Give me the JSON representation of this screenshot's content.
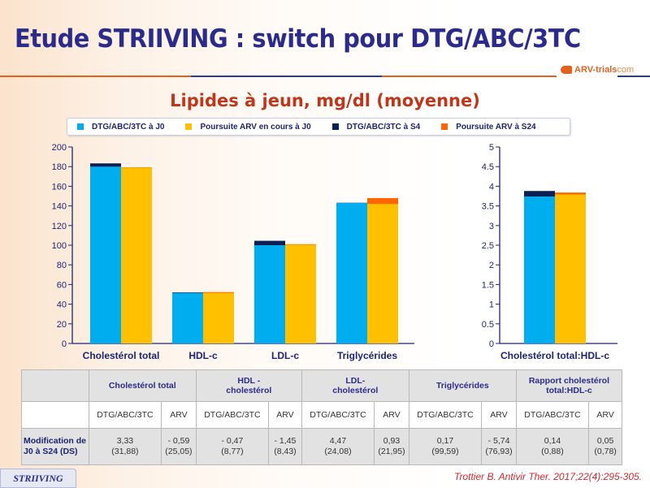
{
  "header": {
    "title": "Etude STRIIVING : switch pour DTG/ABC/3TC",
    "logo_text": "ARV-trials",
    "logo_suffix": "com"
  },
  "subtitle": "Lipides à jeun, mg/dl (moyenne)",
  "legend": [
    {
      "label": "DTG/ABC/3TC à J0",
      "color": "#00aeef"
    },
    {
      "label": "Poursuite ARV en cours à J0",
      "color": "#ffc000"
    },
    {
      "label": "DTG/ABC/3TC à S4",
      "color": "#0b2156"
    },
    {
      "label": "Poursuite ARV à S24",
      "color": "#ff6600"
    }
  ],
  "chart_data": [
    {
      "type": "bar",
      "title": "Lipides à jeun, mg/dl (moyenne)",
      "categories": [
        "Cholestérol total",
        "HDL-c",
        "LDL-c",
        "Triglycérides"
      ],
      "ylim": [
        0,
        200
      ],
      "yticks": [
        "0",
        "20",
        "40",
        "60",
        "80",
        "100",
        "120",
        "140",
        "160",
        "180",
        "200"
      ],
      "series": [
        {
          "name": "DTG/ABC/3TC à J0",
          "values": [
            180,
            51.5,
            100,
            143
          ]
        },
        {
          "name": "DTG/ABC/3TC à S4",
          "values": [
            183.3,
            52,
            104.5,
            143.2
          ]
        },
        {
          "name": "Poursuite ARV en cours à J0",
          "values": [
            179,
            51.5,
            100.5,
            142
          ]
        },
        {
          "name": "Poursuite ARV à S24",
          "values": [
            179.3,
            52.3,
            101,
            148
          ]
        }
      ]
    },
    {
      "type": "bar",
      "title": "",
      "categories": [
        "Cholestérol total:HDL-c"
      ],
      "ylim": [
        0,
        5
      ],
      "yticks": [
        "0",
        "0.5",
        "1",
        "1.5",
        "2",
        "2.5",
        "3",
        "3.5",
        "4",
        "4.5",
        "5"
      ],
      "series": [
        {
          "name": "DTG/ABC/3TC à J0",
          "values": [
            3.74
          ]
        },
        {
          "name": "DTG/ABC/3TC à S4",
          "values": [
            3.88
          ]
        },
        {
          "name": "Poursuite ARV en cours à J0",
          "values": [
            3.79
          ]
        },
        {
          "name": "Poursuite ARV à S24",
          "values": [
            3.84
          ]
        }
      ]
    }
  ],
  "table": {
    "groups": [
      "Cholestérol total",
      "HDL -\ncholestérol",
      "LDL-\ncholestérol",
      "Triglycérides",
      "Rapport cholestérol\ntotal:HDL-c"
    ],
    "subheaders": [
      "DTG/ABC/3TC",
      "ARV",
      "DTG/ABC/3TC",
      "ARV",
      "DTG/ABC/3TC",
      "ARV",
      "DTG/ABC/3TC",
      "ARV",
      "DTG/ABC/3TC",
      "ARV"
    ],
    "row_label": "Modification de J0 à S24 (DS)",
    "values": [
      {
        "mean": "3,33",
        "sd": "(31,88)"
      },
      {
        "mean": "- 0,59",
        "sd": "(25,05)"
      },
      {
        "mean": "- 0,47",
        "sd": "(8,77)"
      },
      {
        "mean": "- 1,45",
        "sd": "(8,43)"
      },
      {
        "mean": "4,47",
        "sd": "(24,08)"
      },
      {
        "mean": "0,93",
        "sd": "(21,95)"
      },
      {
        "mean": "0,17",
        "sd": "(99,59)"
      },
      {
        "mean": "- 5,74",
        "sd": "(76,93)"
      },
      {
        "mean": "0,14",
        "sd": "(0,88)"
      },
      {
        "mean": "0,05",
        "sd": "(0,78)"
      }
    ]
  },
  "footer": {
    "tag": "STRIIVING",
    "reference": "Trottier B. Antivir Ther. 2017;22(4):295-305."
  }
}
